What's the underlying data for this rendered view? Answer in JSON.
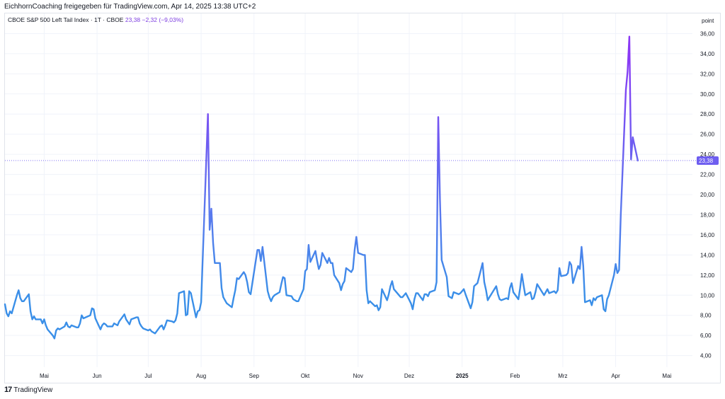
{
  "header": {
    "shared_by": "EichhornCoaching freigegeben für TradingView.com, Apr 14, 2025 13:38 UTC+2"
  },
  "symbol": {
    "name": "CBOE S&P 500 Left Tail Index · 1T · CBOE",
    "last": "23,38",
    "change": "−2,32 (−9,03%)"
  },
  "footer": {
    "logo_text": "TradingView",
    "logo_mark": "17"
  },
  "colors": {
    "line_low": "#3a8fe8",
    "line_high": "#8a38f5",
    "grid": "#f0f3fa",
    "price_tag": "#6e5ef0"
  },
  "chart_data": {
    "type": "line",
    "title": "CBOE S&P 500 Left Tail Index",
    "unit_label": "point",
    "ylim": [
      3.2,
      38
    ],
    "y_ticks": [
      "4,00",
      "6,00",
      "8,00",
      "10,00",
      "12,00",
      "14,00",
      "16,00",
      "18,00",
      "20,00",
      "22,00",
      "24,00",
      "26,00",
      "28,00",
      "30,00",
      "32,00",
      "34,00",
      "36,00"
    ],
    "y_tick_values": [
      4,
      6,
      8,
      10,
      12,
      14,
      16,
      18,
      20,
      22,
      24,
      26,
      28,
      30,
      32,
      34,
      36
    ],
    "last_value": 23.38,
    "last_label": "23,38",
    "x_ticks": [
      "Mai",
      "Jun",
      "Jul",
      "Aug",
      "Sep",
      "Okt",
      "Nov",
      "Dez",
      "2025",
      "Feb",
      "Mrz",
      "Apr",
      "Mai"
    ],
    "x_tick_dates": [
      "2024-05-01",
      "2024-06-01",
      "2024-07-01",
      "2024-08-01",
      "2024-09-01",
      "2024-10-01",
      "2024-11-01",
      "2024-12-01",
      "2025-01-01",
      "2025-02-01",
      "2025-03-01",
      "2025-04-01",
      "2025-05-01"
    ],
    "x_range": [
      "2024-04-08",
      "2025-05-16"
    ],
    "series": [
      {
        "values": [
          [
            "2024-04-08",
            9.1
          ],
          [
            "2024-04-09",
            8.2
          ],
          [
            "2024-04-10",
            7.9
          ],
          [
            "2024-04-11",
            8.4
          ],
          [
            "2024-04-12",
            8.2
          ],
          [
            "2024-04-15",
            10.0
          ],
          [
            "2024-04-16",
            10.5
          ],
          [
            "2024-04-17",
            9.7
          ],
          [
            "2024-04-18",
            9.4
          ],
          [
            "2024-04-19",
            9.4
          ],
          [
            "2024-04-22",
            10.1
          ],
          [
            "2024-04-23",
            8.4
          ],
          [
            "2024-04-24",
            7.6
          ],
          [
            "2024-04-25",
            7.9
          ],
          [
            "2024-04-26",
            7.6
          ],
          [
            "2024-04-29",
            7.6
          ],
          [
            "2024-04-30",
            7.2
          ],
          [
            "2024-05-01",
            7.6
          ],
          [
            "2024-05-02",
            7.0
          ],
          [
            "2024-05-03",
            6.6
          ],
          [
            "2024-05-06",
            6.0
          ],
          [
            "2024-05-07",
            5.7
          ],
          [
            "2024-05-08",
            6.5
          ],
          [
            "2024-05-09",
            6.7
          ],
          [
            "2024-05-10",
            6.6
          ],
          [
            "2024-05-13",
            6.9
          ],
          [
            "2024-05-14",
            7.3
          ],
          [
            "2024-05-15",
            6.9
          ],
          [
            "2024-05-16",
            6.8
          ],
          [
            "2024-05-17",
            7.0
          ],
          [
            "2024-05-20",
            6.8
          ],
          [
            "2024-05-21",
            6.8
          ],
          [
            "2024-05-22",
            7.2
          ],
          [
            "2024-05-23",
            8.0
          ],
          [
            "2024-05-24",
            7.7
          ],
          [
            "2024-05-28",
            8.0
          ],
          [
            "2024-05-29",
            8.7
          ],
          [
            "2024-05-30",
            8.6
          ],
          [
            "2024-05-31",
            7.7
          ],
          [
            "2024-06-03",
            6.6
          ],
          [
            "2024-06-04",
            7.0
          ],
          [
            "2024-06-05",
            7.2
          ],
          [
            "2024-06-06",
            7.1
          ],
          [
            "2024-06-07",
            6.9
          ],
          [
            "2024-06-10",
            6.9
          ],
          [
            "2024-06-11",
            7.2
          ],
          [
            "2024-06-12",
            7.1
          ],
          [
            "2024-06-13",
            7.0
          ],
          [
            "2024-06-14",
            7.4
          ],
          [
            "2024-06-17",
            8.1
          ],
          [
            "2024-06-18",
            7.6
          ],
          [
            "2024-06-20",
            7.1
          ],
          [
            "2024-06-21",
            7.6
          ],
          [
            "2024-06-24",
            7.8
          ],
          [
            "2024-06-25",
            7.8
          ],
          [
            "2024-06-26",
            7.2
          ],
          [
            "2024-06-27",
            6.9
          ],
          [
            "2024-06-28",
            6.7
          ],
          [
            "2024-07-01",
            6.5
          ],
          [
            "2024-07-02",
            6.6
          ],
          [
            "2024-07-03",
            6.4
          ],
          [
            "2024-07-05",
            6.2
          ],
          [
            "2024-07-08",
            6.9
          ],
          [
            "2024-07-09",
            7.0
          ],
          [
            "2024-07-10",
            6.6
          ],
          [
            "2024-07-11",
            7.0
          ],
          [
            "2024-07-12",
            7.5
          ],
          [
            "2024-07-15",
            7.4
          ],
          [
            "2024-07-16",
            7.3
          ],
          [
            "2024-07-17",
            7.5
          ],
          [
            "2024-07-18",
            8.2
          ],
          [
            "2024-07-19",
            10.2
          ],
          [
            "2024-07-22",
            10.4
          ],
          [
            "2024-07-23",
            8.0
          ],
          [
            "2024-07-24",
            8.1
          ],
          [
            "2024-07-25",
            10.4
          ],
          [
            "2024-07-26",
            10.2
          ],
          [
            "2024-07-29",
            7.8
          ],
          [
            "2024-07-30",
            8.4
          ],
          [
            "2024-07-31",
            8.5
          ],
          [
            "2024-08-01",
            9.3
          ],
          [
            "2024-08-02",
            14.0
          ],
          [
            "2024-08-05",
            28.0
          ],
          [
            "2024-08-06",
            16.5
          ],
          [
            "2024-08-07",
            18.6
          ],
          [
            "2024-08-08",
            15.2
          ],
          [
            "2024-08-09",
            13.2
          ],
          [
            "2024-08-12",
            13.2
          ],
          [
            "2024-08-13",
            10.7
          ],
          [
            "2024-08-14",
            9.8
          ],
          [
            "2024-08-15",
            9.5
          ],
          [
            "2024-08-16",
            9.2
          ],
          [
            "2024-08-19",
            8.8
          ],
          [
            "2024-08-20",
            9.7
          ],
          [
            "2024-08-21",
            10.5
          ],
          [
            "2024-08-22",
            11.7
          ],
          [
            "2024-08-23",
            11.6
          ],
          [
            "2024-08-26",
            12.3
          ],
          [
            "2024-08-27",
            12.0
          ],
          [
            "2024-08-28",
            11.3
          ],
          [
            "2024-08-29",
            10.3
          ],
          [
            "2024-08-30",
            10.1
          ],
          [
            "2024-09-03",
            14.5
          ],
          [
            "2024-09-04",
            14.5
          ],
          [
            "2024-09-05",
            13.4
          ],
          [
            "2024-09-06",
            14.8
          ],
          [
            "2024-09-09",
            10.4
          ],
          [
            "2024-09-10",
            9.8
          ],
          [
            "2024-09-11",
            9.4
          ],
          [
            "2024-09-12",
            9.8
          ],
          [
            "2024-09-13",
            10.0
          ],
          [
            "2024-09-16",
            10.3
          ],
          [
            "2024-09-17",
            11.1
          ],
          [
            "2024-09-18",
            11.8
          ],
          [
            "2024-09-19",
            11.7
          ],
          [
            "2024-09-20",
            10.0
          ],
          [
            "2024-09-23",
            9.9
          ],
          [
            "2024-09-24",
            9.6
          ],
          [
            "2024-09-25",
            9.5
          ],
          [
            "2024-09-26",
            9.4
          ],
          [
            "2024-09-27",
            9.4
          ],
          [
            "2024-09-30",
            10.6
          ],
          [
            "2024-10-01",
            12.4
          ],
          [
            "2024-10-02",
            12.6
          ],
          [
            "2024-10-03",
            15.0
          ],
          [
            "2024-10-04",
            13.3
          ],
          [
            "2024-10-07",
            14.4
          ],
          [
            "2024-10-08",
            13.4
          ],
          [
            "2024-10-09",
            12.6
          ],
          [
            "2024-10-10",
            13.0
          ],
          [
            "2024-10-11",
            14.2
          ],
          [
            "2024-10-14",
            13.2
          ],
          [
            "2024-10-15",
            13.7
          ],
          [
            "2024-10-16",
            13.2
          ],
          [
            "2024-10-17",
            13.2
          ],
          [
            "2024-10-18",
            12.0
          ],
          [
            "2024-10-21",
            11.2
          ],
          [
            "2024-10-22",
            10.5
          ],
          [
            "2024-10-23",
            11.1
          ],
          [
            "2024-10-24",
            11.4
          ],
          [
            "2024-10-25",
            12.7
          ],
          [
            "2024-10-28",
            12.3
          ],
          [
            "2024-10-29",
            12.6
          ],
          [
            "2024-10-30",
            14.5
          ],
          [
            "2024-10-31",
            15.8
          ],
          [
            "2024-11-01",
            14.2
          ],
          [
            "2024-11-04",
            14.0
          ],
          [
            "2024-11-05",
            14.0
          ],
          [
            "2024-11-06",
            10.5
          ],
          [
            "2024-11-07",
            9.2
          ],
          [
            "2024-11-08",
            9.4
          ],
          [
            "2024-11-11",
            8.9
          ],
          [
            "2024-11-12",
            9.0
          ],
          [
            "2024-11-13",
            8.5
          ],
          [
            "2024-11-14",
            8.8
          ],
          [
            "2024-11-15",
            10.6
          ],
          [
            "2024-11-18",
            9.5
          ],
          [
            "2024-11-19",
            10.1
          ],
          [
            "2024-11-20",
            10.9
          ],
          [
            "2024-11-21",
            11.4
          ],
          [
            "2024-11-22",
            10.6
          ],
          [
            "2024-11-25",
            10.0
          ],
          [
            "2024-11-26",
            9.8
          ],
          [
            "2024-11-27",
            9.8
          ],
          [
            "2024-11-29",
            10.2
          ],
          [
            "2024-12-02",
            9.2
          ],
          [
            "2024-12-03",
            8.6
          ],
          [
            "2024-12-04",
            9.6
          ],
          [
            "2024-12-05",
            10.2
          ],
          [
            "2024-12-06",
            10.2
          ],
          [
            "2024-12-09",
            9.5
          ],
          [
            "2024-12-10",
            10.1
          ],
          [
            "2024-12-11",
            10.1
          ],
          [
            "2024-12-12",
            9.9
          ],
          [
            "2024-12-13",
            10.3
          ],
          [
            "2024-12-16",
            10.5
          ],
          [
            "2024-12-17",
            11.3
          ],
          [
            "2024-12-18",
            27.7
          ],
          [
            "2024-12-19",
            19.5
          ],
          [
            "2024-12-20",
            13.5
          ],
          [
            "2024-12-23",
            11.8
          ],
          [
            "2024-12-24",
            9.9
          ],
          [
            "2024-12-26",
            9.7
          ],
          [
            "2024-12-27",
            10.3
          ],
          [
            "2024-12-30",
            10.1
          ],
          [
            "2024-12-31",
            10.2
          ],
          [
            "2025-01-02",
            10.6
          ],
          [
            "2025-01-03",
            10.1
          ],
          [
            "2025-01-06",
            8.7
          ],
          [
            "2025-01-07",
            9.3
          ],
          [
            "2025-01-08",
            10.9
          ],
          [
            "2025-01-10",
            11.2
          ],
          [
            "2025-01-13",
            13.2
          ],
          [
            "2025-01-14",
            11.3
          ],
          [
            "2025-01-15",
            10.5
          ],
          [
            "2025-01-16",
            9.5
          ],
          [
            "2025-01-17",
            9.8
          ],
          [
            "2025-01-21",
            10.9
          ],
          [
            "2025-01-22",
            10.1
          ],
          [
            "2025-01-23",
            9.6
          ],
          [
            "2025-01-24",
            9.5
          ],
          [
            "2025-01-27",
            9.7
          ],
          [
            "2025-01-28",
            9.6
          ],
          [
            "2025-01-29",
            10.7
          ],
          [
            "2025-01-30",
            11.2
          ],
          [
            "2025-01-31",
            10.3
          ],
          [
            "2025-02-03",
            9.6
          ],
          [
            "2025-02-04",
            10.7
          ],
          [
            "2025-02-05",
            12.1
          ],
          [
            "2025-02-06",
            11.0
          ],
          [
            "2025-02-07",
            10.0
          ],
          [
            "2025-02-10",
            10.3
          ],
          [
            "2025-02-11",
            9.6
          ],
          [
            "2025-02-12",
            9.7
          ],
          [
            "2025-02-13",
            10.3
          ],
          [
            "2025-02-14",
            11.1
          ],
          [
            "2025-02-18",
            10.0
          ],
          [
            "2025-02-19",
            10.3
          ],
          [
            "2025-02-20",
            10.6
          ],
          [
            "2025-02-21",
            10.2
          ],
          [
            "2025-02-24",
            10.4
          ],
          [
            "2025-02-25",
            10.2
          ],
          [
            "2025-02-26",
            10.5
          ],
          [
            "2025-02-27",
            12.7
          ],
          [
            "2025-02-28",
            11.9
          ],
          [
            "2025-03-03",
            12.0
          ],
          [
            "2025-03-04",
            12.2
          ],
          [
            "2025-03-05",
            13.3
          ],
          [
            "2025-03-06",
            13.0
          ],
          [
            "2025-03-07",
            11.2
          ],
          [
            "2025-03-10",
            12.9
          ],
          [
            "2025-03-11",
            12.6
          ],
          [
            "2025-03-12",
            14.8
          ],
          [
            "2025-03-13",
            12.9
          ],
          [
            "2025-03-14",
            9.3
          ],
          [
            "2025-03-17",
            9.5
          ],
          [
            "2025-03-18",
            9.0
          ],
          [
            "2025-03-19",
            9.7
          ],
          [
            "2025-03-20",
            9.5
          ],
          [
            "2025-03-21",
            9.8
          ],
          [
            "2025-03-24",
            10.0
          ],
          [
            "2025-03-25",
            8.6
          ],
          [
            "2025-03-26",
            8.4
          ],
          [
            "2025-03-27",
            9.6
          ],
          [
            "2025-03-28",
            10.0
          ],
          [
            "2025-03-31",
            12.0
          ],
          [
            "2025-04-01",
            13.1
          ],
          [
            "2025-04-02",
            12.2
          ],
          [
            "2025-04-03",
            12.5
          ],
          [
            "2025-04-04",
            18.0
          ],
          [
            "2025-04-07",
            30.4
          ],
          [
            "2025-04-08",
            32.2
          ],
          [
            "2025-04-09",
            35.7
          ],
          [
            "2025-04-10",
            23.5
          ],
          [
            "2025-04-11",
            25.7
          ],
          [
            "2025-04-14",
            23.38
          ]
        ]
      }
    ]
  }
}
